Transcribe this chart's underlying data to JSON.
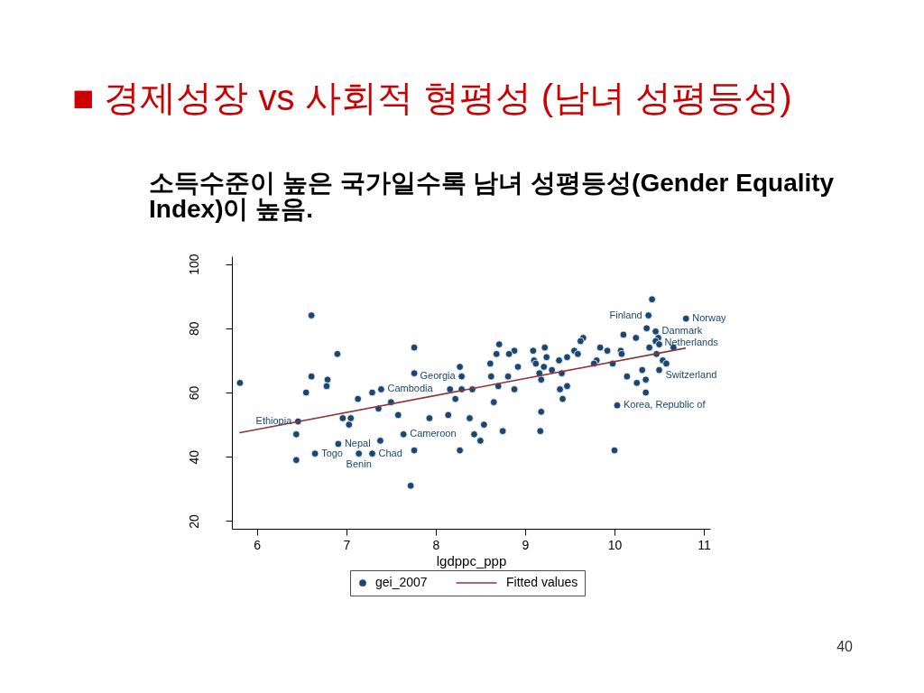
{
  "chart_data": {
    "type": "scatter",
    "title": "■ 경제성장 vs 사회적 형평성 (남녀 성평등성)",
    "subtitle": "소득수준이 높은 국가일수록 남녀 성평등성(Gender Equality Index)이 높음.",
    "xlabel": "lgdppc_ppp",
    "xlim": [
      5.72,
      11.07
    ],
    "ylim": [
      17.6,
      102.4
    ],
    "xticks": [
      6,
      7,
      8,
      9,
      10,
      11
    ],
    "yticks": [
      20,
      40,
      60,
      80,
      100
    ],
    "legend": "bottom",
    "series": [
      {
        "name": "gei_2007",
        "color": "#1a476f",
        "marker": "circle",
        "x": [
          6.61,
          5.81,
          6.9,
          7.76,
          7.76,
          6.61,
          6.79,
          6.78,
          6.55,
          7.13,
          7.29,
          7.39,
          7.5,
          7.36,
          7.58,
          8.27,
          8.29,
          8.16,
          8.29,
          8.22,
          8.14,
          7.93,
          8.38,
          6.46,
          6.96,
          7.05,
          7.03,
          6.44,
          6.91,
          7.38,
          7.64,
          7.76,
          6.65,
          7.14,
          7.29,
          6.44,
          7.72,
          8.27,
          10.42,
          10.38,
          10.8,
          10.36,
          10.46,
          10.49,
          10.46,
          10.5,
          10.1,
          10.24,
          10.39,
          10.66,
          10.47,
          10.54,
          10.58,
          10.31,
          10.5,
          10.35,
          10.25,
          10.14,
          10.35,
          10.03,
          10.07,
          10.08,
          9.98,
          9.92,
          9.84,
          9.8,
          9.77,
          9.65,
          9.62,
          9.55,
          9.59,
          9.47,
          9.38,
          9.41,
          9.3,
          9.24,
          9.22,
          9.09,
          9.1,
          9.12,
          9.21,
          9.16,
          9.18,
          8.88,
          8.82,
          8.71,
          8.68,
          8.61,
          8.92,
          8.62,
          8.81,
          8.7,
          8.88,
          8.41,
          8.65,
          9.18,
          9.39,
          9.47,
          9.42,
          8.54,
          8.43,
          8.5,
          8.75,
          9.17,
          10.0
        ],
        "values": [
          84,
          63,
          72,
          74,
          66,
          65,
          64,
          62,
          60,
          58,
          60,
          61,
          57,
          55,
          53,
          68,
          65,
          61,
          61,
          58,
          53,
          52,
          52,
          51,
          52,
          52,
          50,
          47,
          44,
          45,
          47,
          42,
          41,
          41,
          41,
          39,
          31,
          42,
          89,
          84,
          83,
          80,
          79,
          77,
          76,
          75,
          78,
          77,
          74,
          74,
          72,
          70,
          69,
          67,
          67,
          64,
          63,
          65,
          60,
          56,
          73,
          72,
          69,
          73,
          74,
          70,
          69,
          77,
          76,
          73,
          72,
          71,
          70,
          66,
          67,
          71,
          74,
          73,
          70,
          69,
          68,
          66,
          64,
          73,
          72,
          75,
          72,
          69,
          68,
          65,
          65,
          62,
          61,
          61,
          57,
          54,
          61,
          62,
          58,
          50,
          47,
          45,
          48,
          48,
          42
        ]
      },
      {
        "name": "Fitted values",
        "type": "line",
        "color": "#90353b",
        "x": [
          5.81,
          10.79
        ],
        "values": [
          47.5,
          73.8
        ]
      }
    ],
    "annotations": [
      {
        "text": "Finland",
        "x": 10.38,
        "y": 84
      },
      {
        "text": "Norway",
        "x": 10.8,
        "y": 83
      },
      {
        "text": "Danmark",
        "x": 10.46,
        "y": 79
      },
      {
        "text": "Netherlands",
        "x": 10.49,
        "y": 77
      },
      {
        "text": "Switzerland",
        "x": 10.5,
        "y": 67
      },
      {
        "text": "Korea, Republic of",
        "x": 10.03,
        "y": 56
      },
      {
        "text": "Georgia",
        "x": 8.29,
        "y": 65
      },
      {
        "text": "Cambodia",
        "x": 7.39,
        "y": 61
      },
      {
        "text": "Ethiopia",
        "x": 6.46,
        "y": 51
      },
      {
        "text": "Cameroon",
        "x": 7.64,
        "y": 47
      },
      {
        "text": "Nepal",
        "x": 6.91,
        "y": 44
      },
      {
        "text": "Togo",
        "x": 6.65,
        "y": 41
      },
      {
        "text": "Benin",
        "x": 7.14,
        "y": 41
      },
      {
        "text": "Chad",
        "x": 7.29,
        "y": 41
      },
      "40"
    ]
  }
}
